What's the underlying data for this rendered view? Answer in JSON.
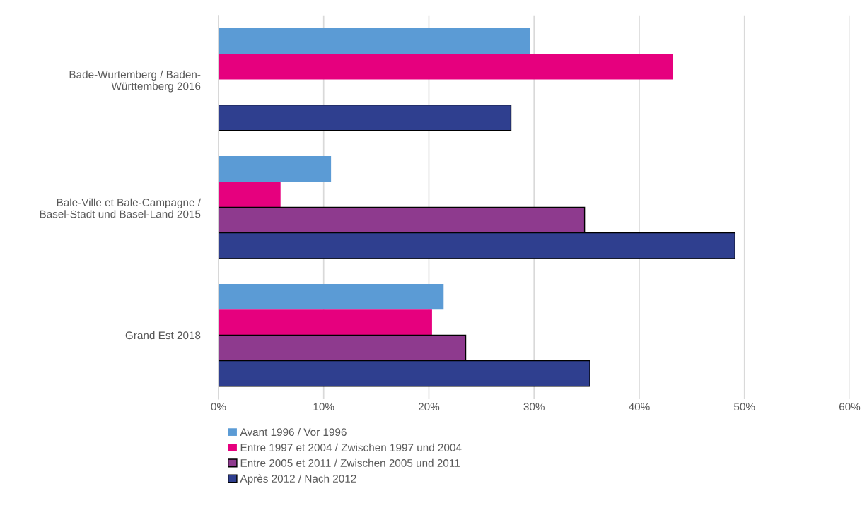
{
  "chart_data": {
    "type": "bar",
    "orientation": "horizontal",
    "categories": [
      "Bade-Wurtemberg / Baden-\nWürttemberg 2016",
      "Bale-Ville et Bale-Campagne /\nBasel-Stadt und Basel-Land 2015",
      "Grand Est 2018"
    ],
    "series": [
      {
        "name": "Avant 1996 / Vor 1996",
        "color": "#5b9bd5",
        "values": [
          29.6,
          10.7,
          21.4
        ]
      },
      {
        "name": "Entre 1997 et 2004 / Zwischen 1997 und 2004",
        "color": "#e6007e",
        "values": [
          43.2,
          5.9,
          20.3
        ]
      },
      {
        "name": "Entre 2005 et 2011 / Zwischen 2005 und 2011",
        "color": "#8e3a8e",
        "values": [
          null,
          34.8,
          23.5
        ]
      },
      {
        "name": "Après 2012 / Nach 2012",
        "color": "#2f3f8f",
        "values": [
          27.8,
          49.1,
          35.3
        ]
      }
    ],
    "xlim": [
      0,
      60
    ],
    "xticks": [
      {
        "value": 0,
        "label": "0%"
      },
      {
        "value": 10,
        "label": "10%"
      },
      {
        "value": 20,
        "label": "20%"
      },
      {
        "value": 30,
        "label": "30%"
      },
      {
        "value": 40,
        "label": "40%"
      },
      {
        "value": 50,
        "label": "50%"
      },
      {
        "value": 60,
        "label": "60%"
      }
    ],
    "grid": "x",
    "legend": "bottom"
  }
}
